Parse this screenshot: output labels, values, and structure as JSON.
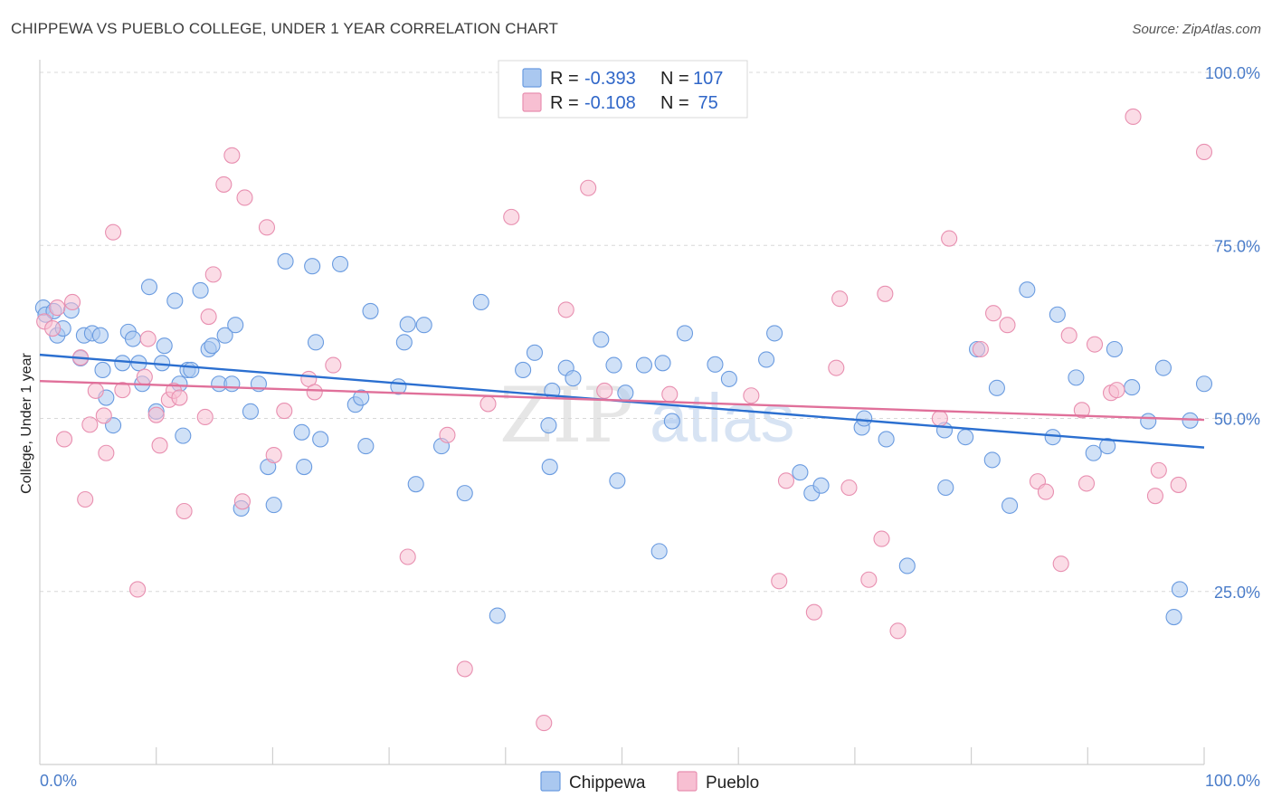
{
  "title": "CHIPPEWA VS PUEBLO COLLEGE, UNDER 1 YEAR CORRELATION CHART",
  "source": "Source: ZipAtlas.com",
  "watermark": {
    "part1": "ZIP",
    "part2": "atlas"
  },
  "colors": {
    "chippewa_fill": "#aac8f0",
    "chippewa_stroke": "#6a9be0",
    "chippewa_line": "#2b6fd0",
    "pueblo_fill": "#f7bfd2",
    "pueblo_stroke": "#e88fb0",
    "pueblo_line": "#e0709a",
    "grid": "#d8d8d8",
    "tick_label": "#4a7cc9"
  },
  "legend": {
    "rows": [
      {
        "r_label": "R = ",
        "r_value": "-0.393",
        "n_label": "N = ",
        "n_value": "107"
      },
      {
        "r_label": "R = ",
        "r_value": "-0.108",
        "n_label": "N = ",
        "n_value": " 75"
      }
    ]
  },
  "chart_data": {
    "type": "scatter",
    "title": "CHIPPEWA VS PUEBLO COLLEGE, UNDER 1 YEAR CORRELATION CHART",
    "xlabel": "",
    "ylabel": "College, Under 1 year",
    "xlim": [
      0,
      100
    ],
    "ylim": [
      0,
      100
    ],
    "x_tick_labels": [
      "0.0%",
      "100.0%"
    ],
    "y_tick_labels": [
      {
        "value": 100,
        "label": "100.0%"
      },
      {
        "value": 75,
        "label": "75.0%"
      },
      {
        "value": 50,
        "label": "50.0%"
      },
      {
        "value": 25,
        "label": "25.0%"
      }
    ],
    "grid": true,
    "legend_position": "top-center",
    "series": [
      {
        "name": "Chippewa",
        "trend": {
          "x": [
            0,
            100
          ],
          "y": [
            59.2,
            45.8
          ]
        },
        "points": [
          [
            0.3,
            66
          ],
          [
            0.5,
            65
          ],
          [
            1.2,
            65.5
          ],
          [
            1.5,
            62
          ],
          [
            2,
            63
          ],
          [
            2.7,
            65.6
          ],
          [
            3.5,
            58.7
          ],
          [
            3.8,
            62
          ],
          [
            4.5,
            62.3
          ],
          [
            5.2,
            62
          ],
          [
            5.4,
            57
          ],
          [
            5.7,
            53
          ],
          [
            6.3,
            49
          ],
          [
            7.1,
            58
          ],
          [
            7.6,
            62.5
          ],
          [
            8,
            61.5
          ],
          [
            8.5,
            58
          ],
          [
            8.8,
            55
          ],
          [
            9.4,
            69
          ],
          [
            10,
            51
          ],
          [
            10.5,
            58
          ],
          [
            10.7,
            60.5
          ],
          [
            11.6,
            67
          ],
          [
            12,
            55
          ],
          [
            12.3,
            47.5
          ],
          [
            12.7,
            57
          ],
          [
            13,
            57
          ],
          [
            13.8,
            68.5
          ],
          [
            14.5,
            60
          ],
          [
            14.8,
            60.5
          ],
          [
            15.4,
            55
          ],
          [
            15.9,
            62
          ],
          [
            16.5,
            55
          ],
          [
            16.8,
            63.5
          ],
          [
            17.3,
            37
          ],
          [
            18.1,
            51
          ],
          [
            18.8,
            55
          ],
          [
            19.6,
            43
          ],
          [
            20.1,
            37.5
          ],
          [
            21.1,
            72.7
          ],
          [
            22.5,
            48
          ],
          [
            22.7,
            43
          ],
          [
            23.4,
            72
          ],
          [
            23.7,
            61
          ],
          [
            24.1,
            47
          ],
          [
            25.8,
            72.3
          ],
          [
            27.1,
            52
          ],
          [
            27.6,
            53
          ],
          [
            28,
            46
          ],
          [
            28.4,
            65.5
          ],
          [
            30.8,
            54.6
          ],
          [
            31.3,
            61
          ],
          [
            31.6,
            63.6
          ],
          [
            32.3,
            40.5
          ],
          [
            33,
            63.5
          ],
          [
            34.5,
            46
          ],
          [
            36.5,
            39.2
          ],
          [
            37.9,
            66.8
          ],
          [
            39.3,
            21.5
          ],
          [
            41.5,
            57
          ],
          [
            42.5,
            59.5
          ],
          [
            43.7,
            49
          ],
          [
            44,
            54
          ],
          [
            43.8,
            43
          ],
          [
            45.2,
            57.3
          ],
          [
            45.8,
            55.8
          ],
          [
            48.2,
            61.4
          ],
          [
            49.3,
            57.7
          ],
          [
            49.6,
            41
          ],
          [
            50.3,
            53.7
          ],
          [
            51.9,
            57.7
          ],
          [
            53.2,
            30.8
          ],
          [
            53.5,
            58
          ],
          [
            54.3,
            49.6
          ],
          [
            55.4,
            62.3
          ],
          [
            58,
            57.8
          ],
          [
            59.2,
            55.7
          ],
          [
            62.4,
            58.5
          ],
          [
            63.1,
            62.3
          ],
          [
            65.3,
            42.2
          ],
          [
            66.3,
            39.2
          ],
          [
            67.1,
            40.3
          ],
          [
            70.6,
            48.7
          ],
          [
            70.8,
            50
          ],
          [
            72.7,
            47
          ],
          [
            74.5,
            28.7
          ],
          [
            77.7,
            48.3
          ],
          [
            77.8,
            40
          ],
          [
            79.5,
            47.3
          ],
          [
            80.5,
            60
          ],
          [
            81.8,
            44
          ],
          [
            82.2,
            54.4
          ],
          [
            83.3,
            37.4
          ],
          [
            84.8,
            68.6
          ],
          [
            87,
            47.3
          ],
          [
            87.4,
            65
          ],
          [
            89,
            55.9
          ],
          [
            90.5,
            45
          ],
          [
            91.7,
            46
          ],
          [
            92.3,
            60
          ],
          [
            93.8,
            54.5
          ],
          [
            95.2,
            49.6
          ],
          [
            96.5,
            57.3
          ],
          [
            97.4,
            21.3
          ],
          [
            97.9,
            25.3
          ],
          [
            98.8,
            49.7
          ],
          [
            100,
            55
          ]
        ]
      },
      {
        "name": "Pueblo",
        "trend": {
          "x": [
            0,
            100
          ],
          "y": [
            55.4,
            49.8
          ]
        },
        "points": [
          [
            0.4,
            64
          ],
          [
            1.1,
            63
          ],
          [
            1.5,
            66
          ],
          [
            2.1,
            47
          ],
          [
            2.8,
            66.8
          ],
          [
            3.5,
            58.8
          ],
          [
            3.9,
            38.3
          ],
          [
            4.3,
            49.1
          ],
          [
            4.8,
            54
          ],
          [
            5.5,
            50.4
          ],
          [
            5.7,
            45
          ],
          [
            6.3,
            76.9
          ],
          [
            7.1,
            54.1
          ],
          [
            8.4,
            25.3
          ],
          [
            9,
            56
          ],
          [
            9.3,
            61.5
          ],
          [
            10,
            50.5
          ],
          [
            10.3,
            46.1
          ],
          [
            11.1,
            52.7
          ],
          [
            11.5,
            54
          ],
          [
            12,
            53
          ],
          [
            12.4,
            36.6
          ],
          [
            14.2,
            50.2
          ],
          [
            14.5,
            64.7
          ],
          [
            14.9,
            70.8
          ],
          [
            15.8,
            83.8
          ],
          [
            16.5,
            88
          ],
          [
            17.4,
            38
          ],
          [
            17.6,
            81.9
          ],
          [
            19.5,
            77.6
          ],
          [
            20.1,
            44.7
          ],
          [
            21,
            51.1
          ],
          [
            23.1,
            55.7
          ],
          [
            23.6,
            53.8
          ],
          [
            25.2,
            57.7
          ],
          [
            31.6,
            30
          ],
          [
            35,
            47.6
          ],
          [
            36.5,
            13.8
          ],
          [
            38.5,
            52.1
          ],
          [
            40.5,
            79.1
          ],
          [
            43.3,
            6
          ],
          [
            45.2,
            65.7
          ],
          [
            47.1,
            83.3
          ],
          [
            48.5,
            54
          ],
          [
            54.1,
            53.5
          ],
          [
            61.1,
            53.3
          ],
          [
            64.1,
            41
          ],
          [
            63.5,
            26.5
          ],
          [
            66.5,
            22
          ],
          [
            68.4,
            57.3
          ],
          [
            68.7,
            67.3
          ],
          [
            69.5,
            40
          ],
          [
            71.2,
            26.7
          ],
          [
            72.3,
            32.6
          ],
          [
            72.6,
            68
          ],
          [
            73.7,
            19.3
          ],
          [
            77.3,
            50
          ],
          [
            78.1,
            76
          ],
          [
            80.8,
            60
          ],
          [
            81.9,
            65.2
          ],
          [
            83.1,
            63.5
          ],
          [
            85.7,
            40.9
          ],
          [
            86.4,
            39.4
          ],
          [
            87.7,
            29
          ],
          [
            88.4,
            62
          ],
          [
            89.5,
            51.2
          ],
          [
            89.9,
            40.6
          ],
          [
            90.6,
            60.7
          ],
          [
            92,
            53.7
          ],
          [
            92.5,
            54.1
          ],
          [
            93.9,
            93.6
          ],
          [
            95.8,
            38.8
          ],
          [
            96.1,
            42.5
          ],
          [
            97.8,
            40.4
          ],
          [
            100,
            88.5
          ]
        ]
      }
    ]
  },
  "bottom_legend": {
    "items": [
      "Chippewa",
      "Pueblo"
    ]
  }
}
